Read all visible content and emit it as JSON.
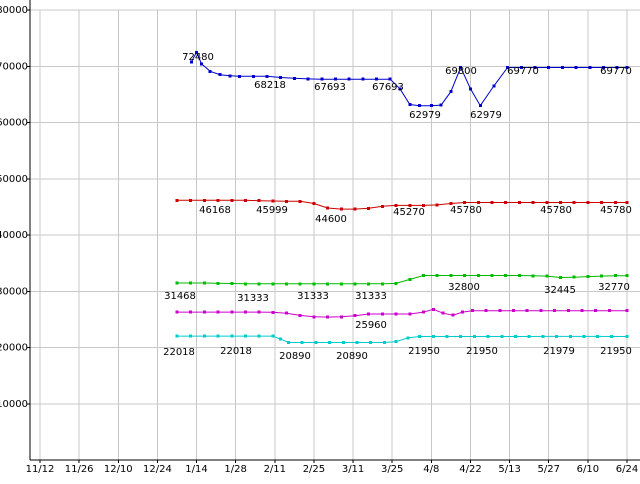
{
  "chart_data": {
    "type": "line",
    "title": "",
    "grid": true,
    "legend": "none",
    "x_unit": "tick_index",
    "background_color": "#ffffff",
    "grid_color": "#c8c8c8",
    "axis_color": "#000000",
    "label_color": "#000000",
    "ylim": [
      0,
      80000
    ],
    "y_ticks": [
      10000,
      20000,
      30000,
      40000,
      50000,
      60000,
      70000,
      80000
    ],
    "x_tick_labels": [
      "11/12",
      "11/26",
      "12/10",
      "12/24",
      "1/14",
      "1/28",
      "2/11",
      "2/25",
      "3/11",
      "3/25",
      "4/8",
      "4/22",
      "5/13",
      "5/27",
      "6/10",
      "6/24"
    ],
    "series": [
      {
        "name": "series-1-blue",
        "color": "#0000cc",
        "points": [
          [
            3.87,
            70800
          ],
          [
            4,
            72480
          ],
          [
            4.13,
            70400
          ],
          [
            4.35,
            69100
          ],
          [
            4.6,
            68500
          ],
          [
            4.85,
            68300
          ],
          [
            5.1,
            68218
          ],
          [
            5.45,
            68218
          ],
          [
            5.8,
            68218
          ],
          [
            6.15,
            68000
          ],
          [
            6.5,
            67850
          ],
          [
            6.85,
            67750
          ],
          [
            7.2,
            67693
          ],
          [
            7.55,
            67693
          ],
          [
            7.9,
            67693
          ],
          [
            8.25,
            67693
          ],
          [
            8.6,
            67693
          ],
          [
            8.95,
            67693
          ],
          [
            9.2,
            66000
          ],
          [
            9.45,
            63200
          ],
          [
            9.7,
            62979
          ],
          [
            10,
            62979
          ],
          [
            10.25,
            63100
          ],
          [
            10.5,
            65500
          ],
          [
            10.75,
            69800
          ],
          [
            11,
            66000
          ],
          [
            11.25,
            62979
          ],
          [
            11.6,
            66500
          ],
          [
            11.95,
            69770
          ],
          [
            12.3,
            69770
          ],
          [
            12.65,
            69770
          ],
          [
            13,
            69770
          ],
          [
            13.35,
            69770
          ],
          [
            13.7,
            69770
          ],
          [
            14.05,
            69770
          ],
          [
            14.4,
            69770
          ],
          [
            14.75,
            69770
          ],
          [
            15,
            69770
          ]
        ]
      },
      {
        "name": "series-2-red",
        "color": "#cc0000",
        "points": [
          [
            3.5,
            46168
          ],
          [
            3.85,
            46168
          ],
          [
            4.2,
            46168
          ],
          [
            4.55,
            46168
          ],
          [
            4.9,
            46168
          ],
          [
            5.25,
            46168
          ],
          [
            5.6,
            46100
          ],
          [
            5.95,
            46050
          ],
          [
            6.3,
            45999
          ],
          [
            6.65,
            45999
          ],
          [
            7,
            45600
          ],
          [
            7.35,
            44800
          ],
          [
            7.7,
            44600
          ],
          [
            8.05,
            44600
          ],
          [
            8.4,
            44750
          ],
          [
            8.75,
            45100
          ],
          [
            9.1,
            45270
          ],
          [
            9.45,
            45270
          ],
          [
            9.8,
            45270
          ],
          [
            10.15,
            45350
          ],
          [
            10.5,
            45600
          ],
          [
            10.85,
            45780
          ],
          [
            11.2,
            45780
          ],
          [
            11.55,
            45780
          ],
          [
            11.9,
            45780
          ],
          [
            12.25,
            45780
          ],
          [
            12.6,
            45780
          ],
          [
            12.95,
            45780
          ],
          [
            13.3,
            45780
          ],
          [
            13.65,
            45780
          ],
          [
            14,
            45780
          ],
          [
            14.35,
            45780
          ],
          [
            14.7,
            45780
          ],
          [
            15,
            45780
          ]
        ]
      },
      {
        "name": "series-3-green",
        "color": "#00bb00",
        "points": [
          [
            3.5,
            31468
          ],
          [
            3.85,
            31468
          ],
          [
            4.2,
            31468
          ],
          [
            4.55,
            31420
          ],
          [
            4.9,
            31380
          ],
          [
            5.25,
            31333
          ],
          [
            5.6,
            31333
          ],
          [
            5.95,
            31333
          ],
          [
            6.3,
            31333
          ],
          [
            6.65,
            31333
          ],
          [
            7,
            31333
          ],
          [
            7.35,
            31333
          ],
          [
            7.7,
            31333
          ],
          [
            8.05,
            31333
          ],
          [
            8.4,
            31333
          ],
          [
            8.75,
            31333
          ],
          [
            9.1,
            31400
          ],
          [
            9.45,
            32100
          ],
          [
            9.8,
            32800
          ],
          [
            10.15,
            32800
          ],
          [
            10.5,
            32800
          ],
          [
            10.85,
            32800
          ],
          [
            11.2,
            32800
          ],
          [
            11.55,
            32800
          ],
          [
            11.9,
            32800
          ],
          [
            12.25,
            32800
          ],
          [
            12.6,
            32750
          ],
          [
            12.95,
            32700
          ],
          [
            13.3,
            32445
          ],
          [
            13.65,
            32500
          ],
          [
            14,
            32600
          ],
          [
            14.35,
            32700
          ],
          [
            14.7,
            32770
          ],
          [
            15,
            32770
          ]
        ]
      },
      {
        "name": "series-4-magenta",
        "color": "#cc00cc",
        "points": [
          [
            3.5,
            26300
          ],
          [
            3.85,
            26300
          ],
          [
            4.2,
            26300
          ],
          [
            4.55,
            26300
          ],
          [
            4.9,
            26300
          ],
          [
            5.25,
            26300
          ],
          [
            5.6,
            26300
          ],
          [
            5.95,
            26250
          ],
          [
            6.3,
            26100
          ],
          [
            6.65,
            25700
          ],
          [
            7,
            25450
          ],
          [
            7.35,
            25400
          ],
          [
            7.7,
            25450
          ],
          [
            8.05,
            25650
          ],
          [
            8.4,
            25960
          ],
          [
            8.75,
            25960
          ],
          [
            9.1,
            25960
          ],
          [
            9.45,
            25960
          ],
          [
            9.8,
            26300
          ],
          [
            10.05,
            26800
          ],
          [
            10.3,
            26100
          ],
          [
            10.55,
            25750
          ],
          [
            10.8,
            26300
          ],
          [
            11.05,
            26550
          ],
          [
            11.4,
            26550
          ],
          [
            11.75,
            26550
          ],
          [
            12.1,
            26550
          ],
          [
            12.45,
            26550
          ],
          [
            12.8,
            26550
          ],
          [
            13.15,
            26550
          ],
          [
            13.5,
            26550
          ],
          [
            13.85,
            26550
          ],
          [
            14.2,
            26550
          ],
          [
            14.55,
            26550
          ],
          [
            15,
            26550
          ]
        ]
      },
      {
        "name": "series-5-cyan",
        "color": "#00cccc",
        "points": [
          [
            3.5,
            22018
          ],
          [
            3.85,
            22018
          ],
          [
            4.2,
            22018
          ],
          [
            4.55,
            22018
          ],
          [
            4.9,
            22018
          ],
          [
            5.25,
            22018
          ],
          [
            5.6,
            22018
          ],
          [
            5.95,
            22018
          ],
          [
            6.15,
            21500
          ],
          [
            6.35,
            20890
          ],
          [
            6.7,
            20890
          ],
          [
            7.05,
            20890
          ],
          [
            7.4,
            20890
          ],
          [
            7.75,
            20890
          ],
          [
            8.1,
            20890
          ],
          [
            8.45,
            20890
          ],
          [
            8.8,
            20890
          ],
          [
            9.1,
            21050
          ],
          [
            9.4,
            21700
          ],
          [
            9.7,
            21950
          ],
          [
            10.05,
            21950
          ],
          [
            10.4,
            21950
          ],
          [
            10.75,
            21950
          ],
          [
            11.1,
            21950
          ],
          [
            11.45,
            21950
          ],
          [
            11.8,
            21950
          ],
          [
            12.15,
            21950
          ],
          [
            12.5,
            21950
          ],
          [
            12.85,
            21979
          ],
          [
            13.2,
            21979
          ],
          [
            13.55,
            21979
          ],
          [
            13.9,
            21979
          ],
          [
            14.25,
            21979
          ],
          [
            14.6,
            21950
          ],
          [
            15,
            21950
          ]
        ]
      }
    ],
    "annotations": [
      {
        "text": "72480",
        "x": 198,
        "y": 57
      },
      {
        "text": "68218",
        "x": 270,
        "y": 85
      },
      {
        "text": "67693",
        "x": 330,
        "y": 87
      },
      {
        "text": "67693",
        "x": 388,
        "y": 87
      },
      {
        "text": "62979",
        "x": 425,
        "y": 115
      },
      {
        "text": "69800",
        "x": 461,
        "y": 71
      },
      {
        "text": "62979",
        "x": 486,
        "y": 115
      },
      {
        "text": "69770",
        "x": 523,
        "y": 71
      },
      {
        "text": "69770",
        "x": 616,
        "y": 71
      },
      {
        "text": "46168",
        "x": 215,
        "y": 210
      },
      {
        "text": "45999",
        "x": 272,
        "y": 210
      },
      {
        "text": "44600",
        "x": 331,
        "y": 219
      },
      {
        "text": "45270",
        "x": 409,
        "y": 212
      },
      {
        "text": "45780",
        "x": 466,
        "y": 210
      },
      {
        "text": "45780",
        "x": 556,
        "y": 210
      },
      {
        "text": "45780",
        "x": 616,
        "y": 210
      },
      {
        "text": "31468",
        "x": 180,
        "y": 296
      },
      {
        "text": "31333",
        "x": 253,
        "y": 298
      },
      {
        "text": "31333",
        "x": 313,
        "y": 296
      },
      {
        "text": "31333",
        "x": 371,
        "y": 296
      },
      {
        "text": "32800",
        "x": 464,
        "y": 287
      },
      {
        "text": "32445",
        "x": 560,
        "y": 290
      },
      {
        "text": "32770",
        "x": 614,
        "y": 287
      },
      {
        "text": "25960",
        "x": 371,
        "y": 325
      },
      {
        "text": "22018",
        "x": 179,
        "y": 352
      },
      {
        "text": "22018",
        "x": 236,
        "y": 351
      },
      {
        "text": "20890",
        "x": 295,
        "y": 356
      },
      {
        "text": "20890",
        "x": 352,
        "y": 356
      },
      {
        "text": "21950",
        "x": 424,
        "y": 351
      },
      {
        "text": "21950",
        "x": 482,
        "y": 351
      },
      {
        "text": "21979",
        "x": 559,
        "y": 351
      },
      {
        "text": "21950",
        "x": 616,
        "y": 351
      }
    ]
  }
}
